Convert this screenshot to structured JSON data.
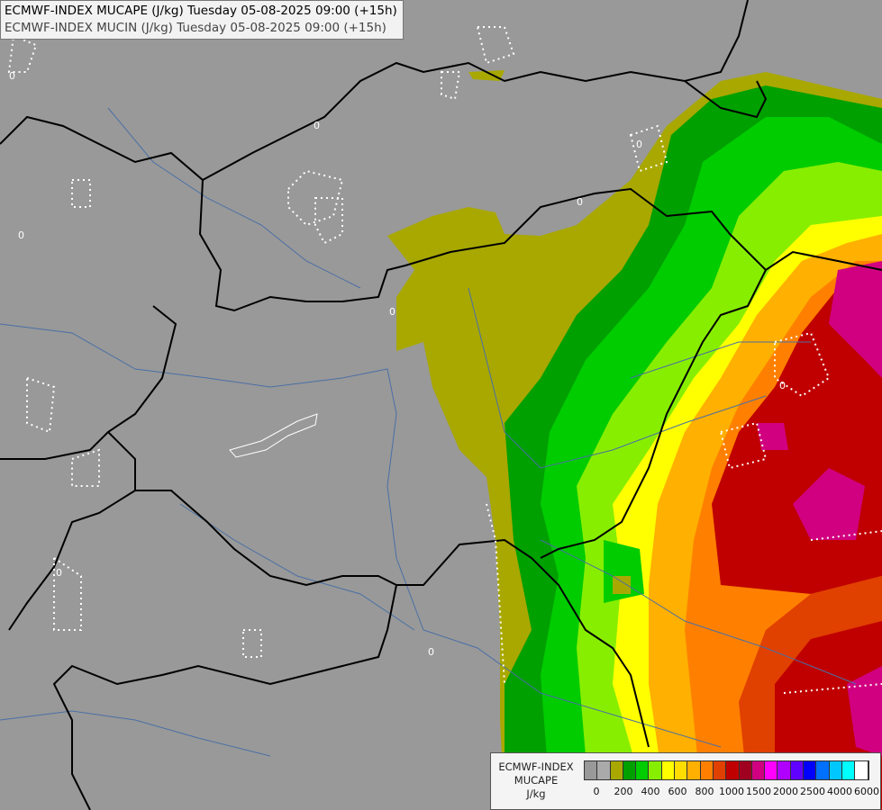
{
  "title": {
    "line1": "ECMWF-INDEX MUCAPE (J/kg) Tuesday 05-08-2025 09:00 (+15h)",
    "line2": "ECMWF-INDEX MUCIN (J/kg) Tuesday 05-08-2025 09:00 (+15h)"
  },
  "legend": {
    "line1": "ECMWF-INDEX",
    "line2": "MUCAPE",
    "line3": "J/kg",
    "colors": [
      "#999999",
      "#aaaaaa",
      "#a8a800",
      "#00a000",
      "#00cc00",
      "#88ee00",
      "#ffff00",
      "#ffdd00",
      "#ffb000",
      "#ff8000",
      "#e04000",
      "#c00000",
      "#a00020",
      "#d00080",
      "#ff00ff",
      "#b000ff",
      "#6000ff",
      "#0000ff",
      "#0070ff",
      "#00c8ff",
      "#00ffff",
      "#ffffff"
    ],
    "tick_labels": [
      "0",
      "200",
      "400",
      "600",
      "800",
      "1000",
      "1500",
      "2000",
      "2500",
      "4000",
      "6000"
    ]
  },
  "map": {
    "contour_label": "0"
  },
  "colors": {
    "background": "#999999",
    "border": "#000000",
    "river": "#4a6fa5",
    "cin_contour": "#ffffff"
  }
}
